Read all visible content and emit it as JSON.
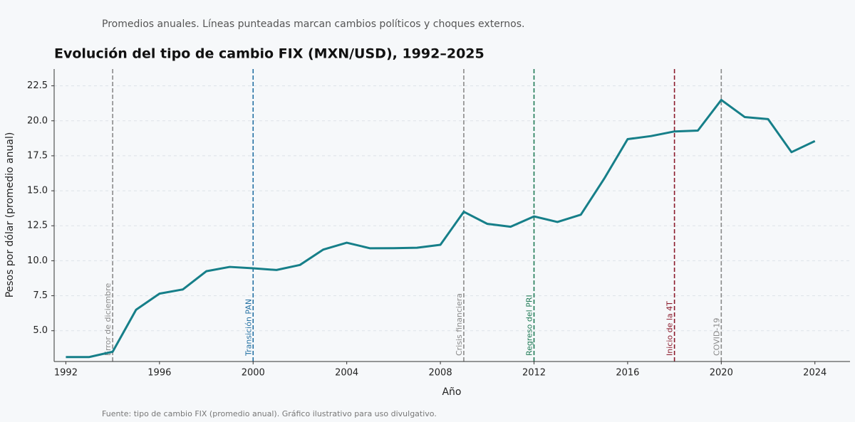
{
  "chart_data": {
    "type": "line",
    "subtitle": "Promedios anuales. Líneas punteadas marcan cambios políticos y choques externos.",
    "title": "Evolución del tipo de cambio FIX (MXN/USD), 1992–2025",
    "x_label": "Año",
    "y_label": "Pesos por dólar (promedio anual)",
    "source": "Fuente: tipo de cambio FIX (promedio anual). Gráfico ilustrativo para uso divulgativo.",
    "x": [
      1992,
      1993,
      1994,
      1995,
      1996,
      1997,
      1998,
      1999,
      2000,
      2001,
      2002,
      2003,
      2004,
      2005,
      2006,
      2007,
      2008,
      2009,
      2010,
      2011,
      2012,
      2013,
      2014,
      2015,
      2016,
      2017,
      2018,
      2019,
      2020,
      2021,
      2022,
      2023,
      2024
    ],
    "series": [
      {
        "name": "FIX",
        "color": "#167f89",
        "values": [
          3.12,
          3.12,
          3.5,
          6.5,
          7.65,
          7.95,
          9.25,
          9.56,
          9.46,
          9.34,
          9.7,
          10.8,
          11.29,
          10.89,
          10.9,
          10.93,
          11.14,
          13.5,
          12.64,
          12.43,
          13.17,
          12.77,
          13.29,
          15.87,
          18.69,
          18.91,
          19.24,
          19.3,
          21.49,
          20.27,
          20.12,
          17.76,
          18.55
        ]
      }
    ],
    "events": [
      {
        "x": 1994,
        "label": "Error de diciembre",
        "color": "#8a8a8a"
      },
      {
        "x": 2000,
        "label": "Transición PAN",
        "color": "#2471a3"
      },
      {
        "x": 2009,
        "label": "Crisis financiera",
        "color": "#8a8a8a"
      },
      {
        "x": 2012,
        "label": "Regreso del PRI",
        "color": "#1e7a55"
      },
      {
        "x": 2018,
        "label": "Inicio de la 4T",
        "color": "#8b1a2b"
      },
      {
        "x": 2020,
        "label": "COVID-19",
        "color": "#8a8a8a"
      }
    ],
    "xlim": [
      1991.5,
      2025.5
    ],
    "ylim": [
      2.8,
      23.7
    ],
    "xticks": [
      1992,
      1996,
      2000,
      2004,
      2008,
      2012,
      2016,
      2020,
      2024
    ],
    "yticks": [
      {
        "value": 5,
        "label": "5.0"
      },
      7.5,
      {
        "value": 10,
        "label": "10.0"
      },
      12.5,
      {
        "value": 15,
        "label": "15.0"
      },
      17.5,
      {
        "value": 20,
        "label": "20.0"
      },
      22.5
    ],
    "grid": true
  }
}
